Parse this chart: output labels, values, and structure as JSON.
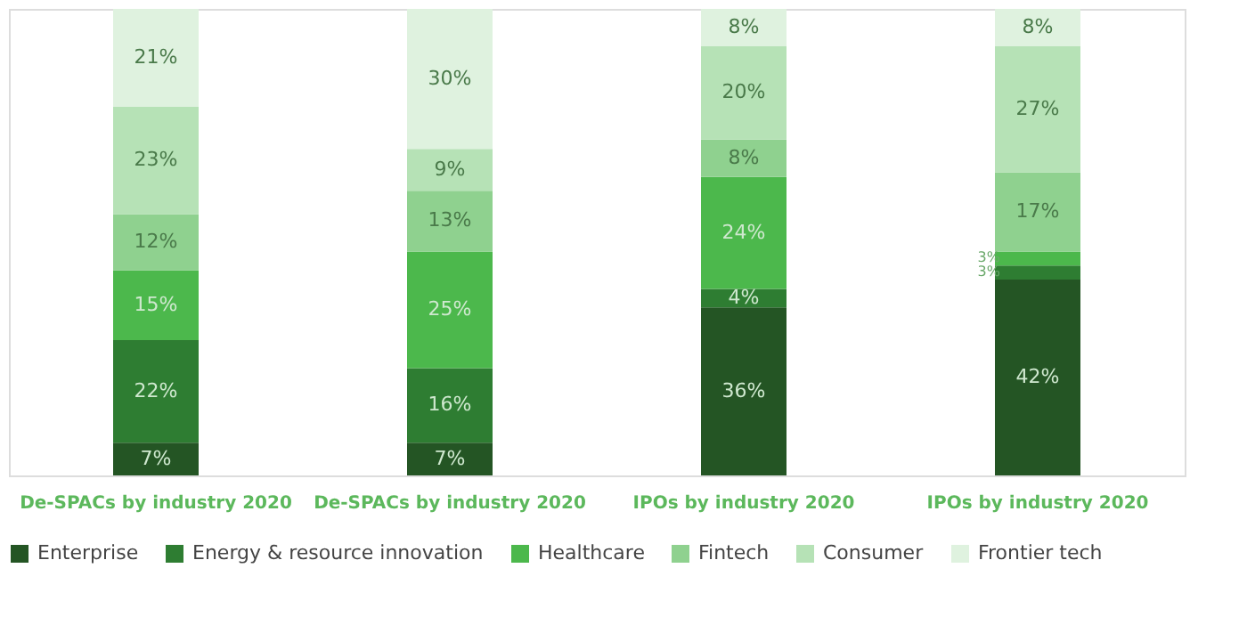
{
  "chart_data": {
    "type": "bar",
    "stacked": true,
    "categories": [
      "De-SPACs by industry 2020",
      "De-SPACs by industry 2020",
      "IPOs by industry 2020",
      "IPOs by industry 2020"
    ],
    "series": [
      {
        "name": "Enterprise",
        "color": "#245524",
        "values": [
          7,
          7,
          36,
          42
        ],
        "value_labels": [
          "7%",
          "7%",
          "36%",
          "42%"
        ]
      },
      {
        "name": "Energy & resource innovation",
        "color": "#2e7d32",
        "values": [
          22,
          16,
          4,
          3
        ],
        "value_labels": [
          "22%",
          "16%",
          "4%",
          "3%"
        ]
      },
      {
        "name": "Healthcare",
        "color": "#4cb84c",
        "values": [
          15,
          25,
          24,
          3
        ],
        "value_labels": [
          "15%",
          "25%",
          "24%",
          "3%"
        ]
      },
      {
        "name": "Fintech",
        "color": "#8fd18f",
        "values": [
          12,
          13,
          8,
          17
        ],
        "value_labels": [
          "12%",
          "13%",
          "8%",
          "17%"
        ]
      },
      {
        "name": "Consumer",
        "color": "#b6e2b6",
        "values": [
          23,
          9,
          20,
          27
        ],
        "value_labels": [
          "23%",
          "9%",
          "20%",
          "27%"
        ]
      },
      {
        "name": "Frontier tech",
        "color": "#dff2df",
        "values": [
          21,
          30,
          8,
          8
        ],
        "value_labels": [
          "21%",
          "30%",
          "8%",
          "8%"
        ]
      }
    ],
    "tick_labels": "x",
    "legend": "bottom",
    "grid": false
  }
}
